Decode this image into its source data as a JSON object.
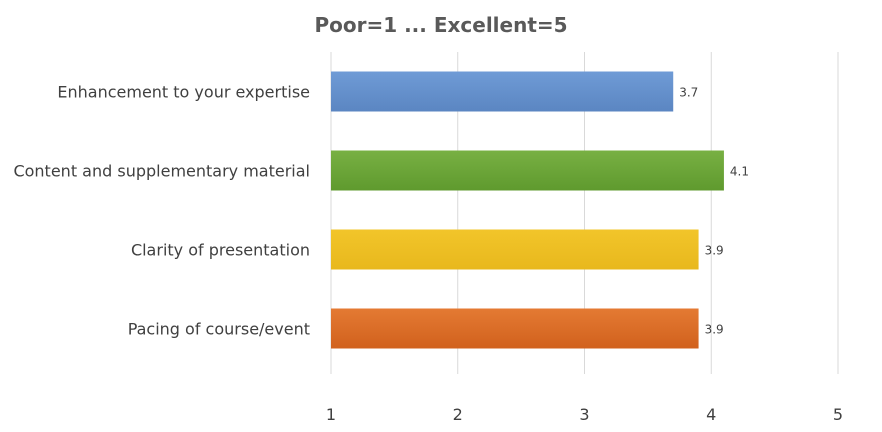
{
  "chart_data": {
    "type": "bar",
    "orientation": "horizontal",
    "title": "Poor=1 ... Excellent=5",
    "categories": [
      "Enhancement to your expertise",
      "Content and supplementary material",
      "Clarity of presentation",
      "Pacing of course/event"
    ],
    "values": [
      3.7,
      4.1,
      3.9,
      3.9
    ],
    "data_labels": [
      "3.7",
      "4.1",
      "3.9",
      "3.9"
    ],
    "bar_colors": [
      "#6f9bd6",
      "#78b043",
      "#f2c52a",
      "#e47a33"
    ],
    "bar_colors_dark": [
      "#5b86c2",
      "#5f9a2e",
      "#e8b81d",
      "#d1611d"
    ],
    "xlim": [
      1,
      5
    ],
    "x_ticks": [
      1,
      2,
      3,
      4,
      5
    ],
    "x_tick_labels": [
      "1",
      "2",
      "3",
      "4",
      "5"
    ],
    "xlabel": "",
    "ylabel": "",
    "grid": "vertical",
    "grid_color": "#d9d9d9",
    "legend": "none"
  }
}
